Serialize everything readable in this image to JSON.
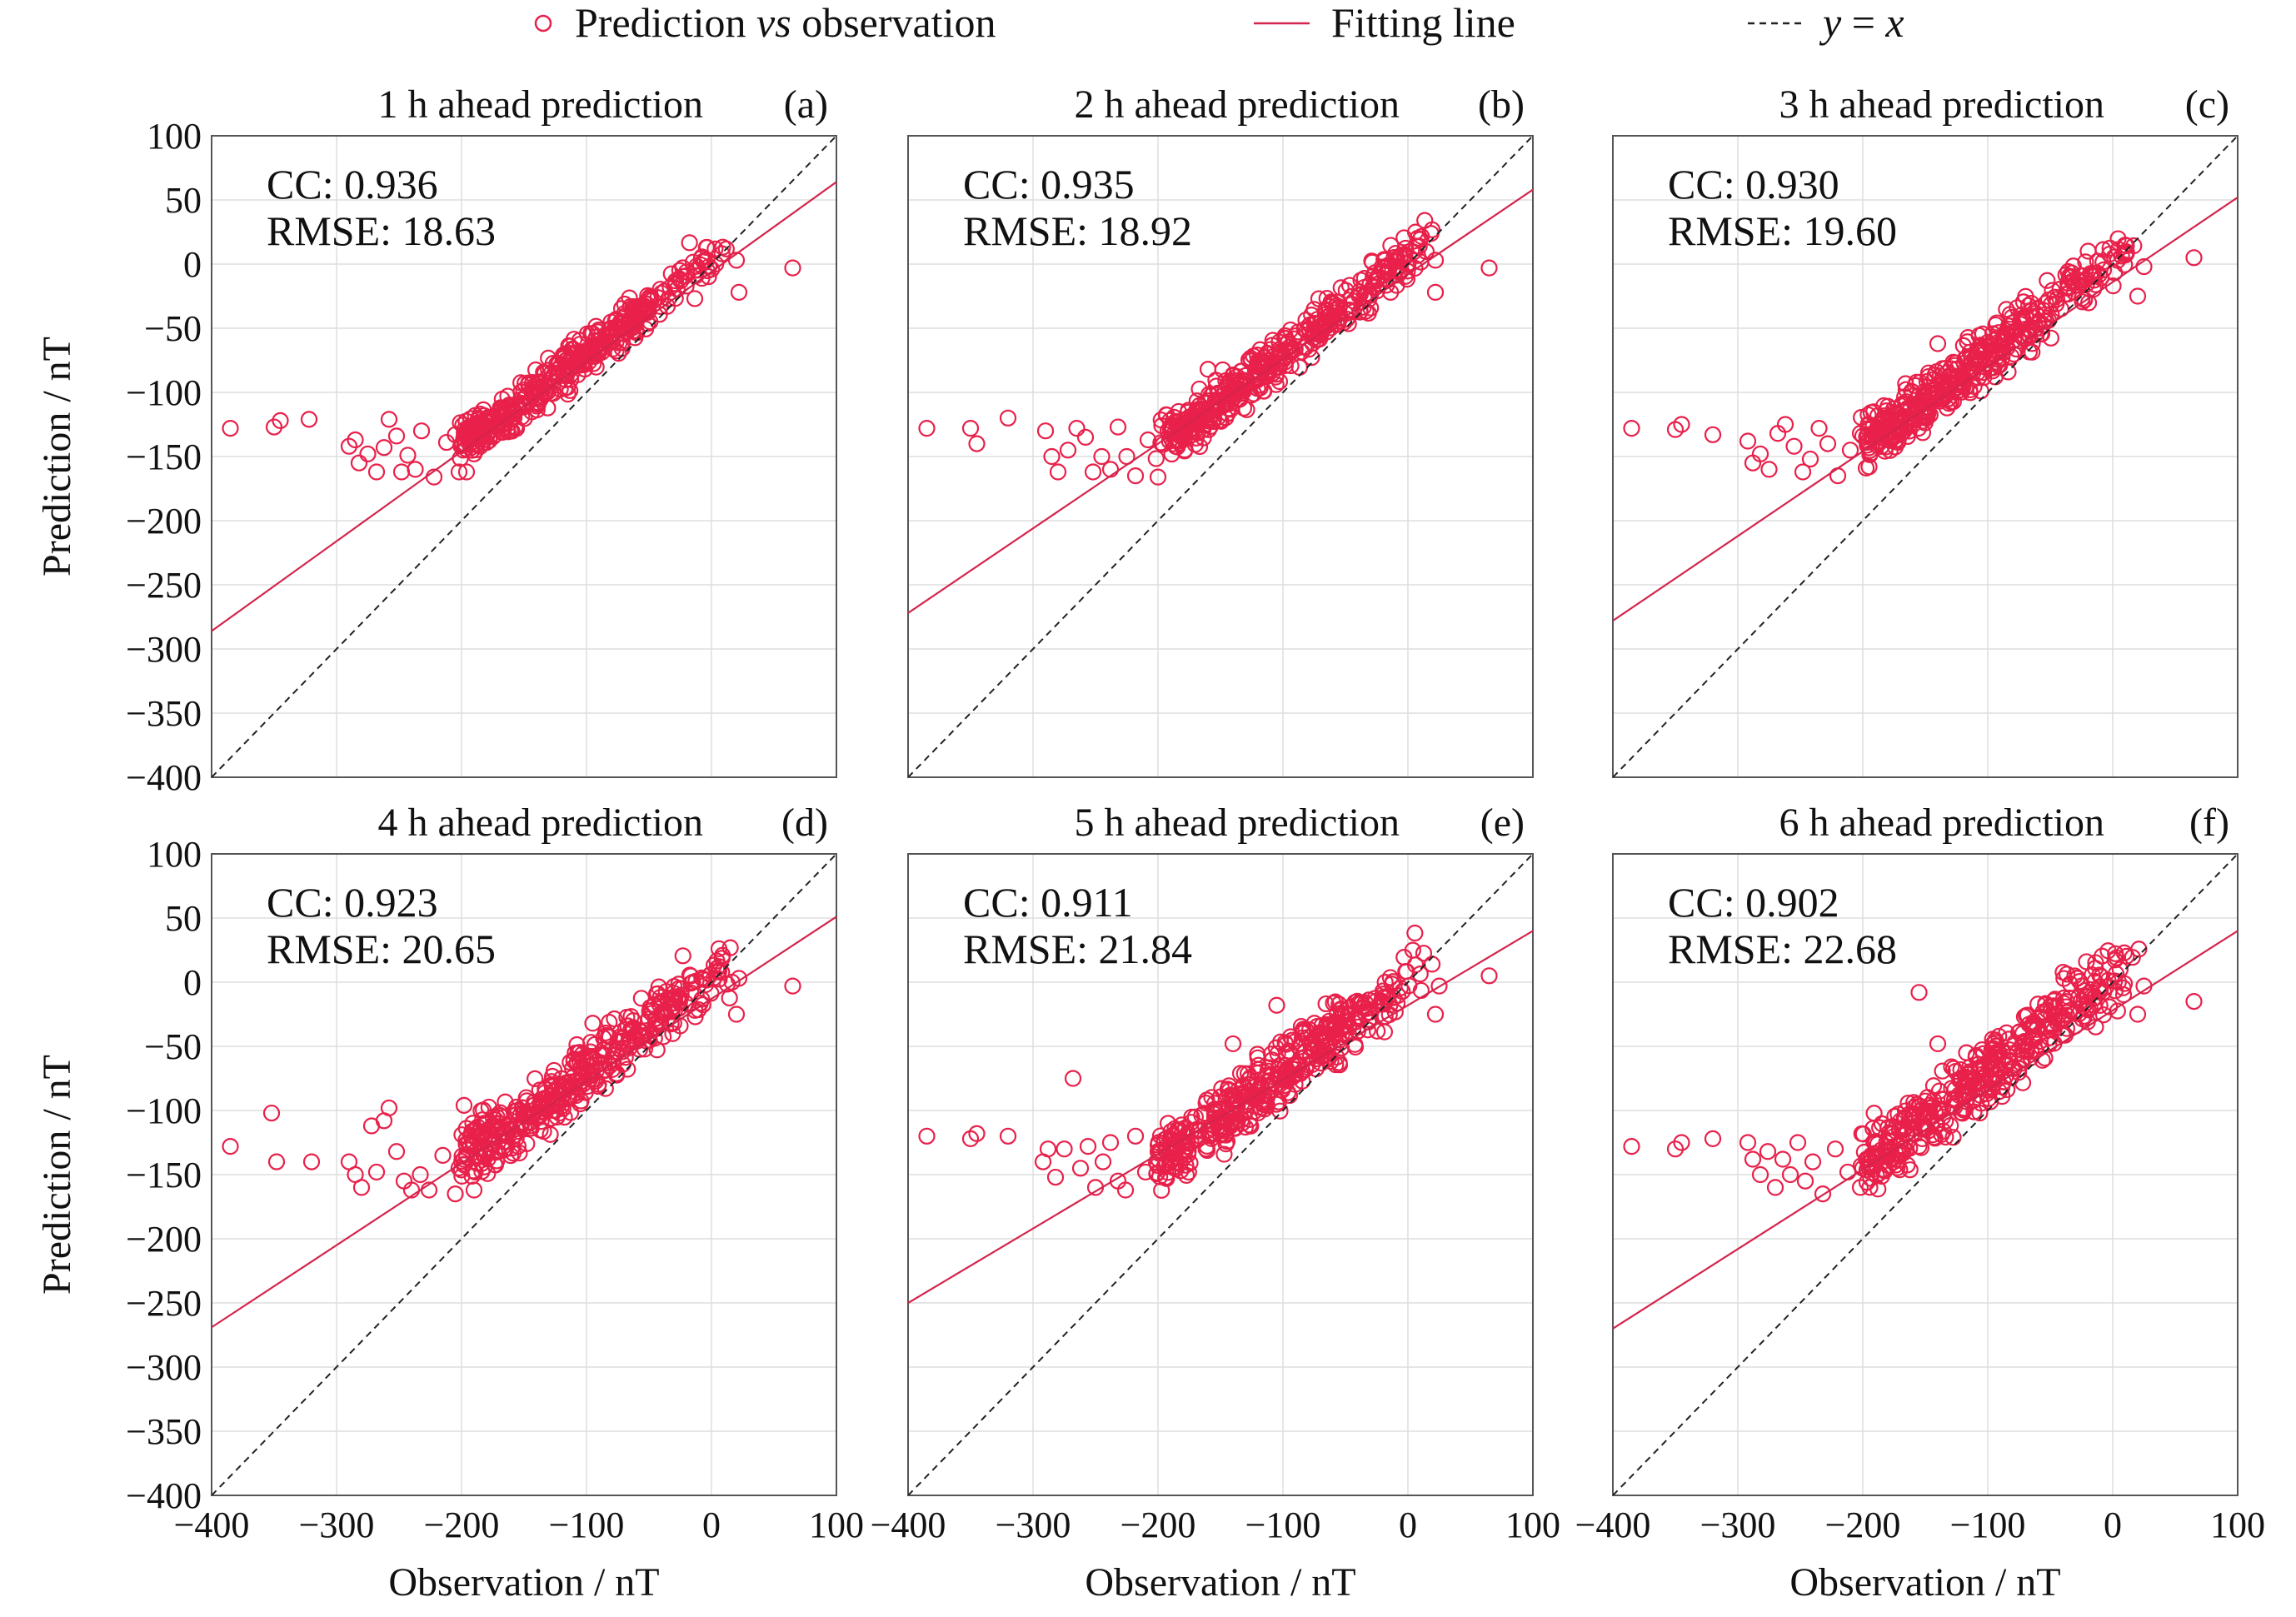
{
  "legend": {
    "scatter_label": "Prediction",
    "scatter_vs": "vs",
    "scatter_suffix": "observation",
    "fit_label": "Fitting line",
    "identity_label_y": "y",
    "identity_label_eq": " = ",
    "identity_label_x": "x",
    "position": "top"
  },
  "colors": {
    "marker": "#e8204a",
    "fit_line": "#d4244c",
    "identity_line": "#222222",
    "grid": "#dddddd",
    "axis": "#555555"
  },
  "chart_data": [
    {
      "type": "scatter",
      "panel": "(a)",
      "title": "1 h ahead prediction",
      "cc_label": "CC: ",
      "cc": "0.936",
      "rmse_label": "RMSE: ",
      "rmse": "18.63",
      "xlabel": "",
      "ylabel": "Prediction / nT",
      "xlim": [
        -400,
        100
      ],
      "ylim": [
        -400,
        100
      ],
      "xticks": [
        "−400",
        "−300",
        "−200",
        "−100",
        "0",
        "100"
      ],
      "yticks": [
        "100",
        "50",
        "0",
        "−50",
        "−100",
        "−150",
        "−200",
        "−250",
        "−300",
        "−350",
        "−400"
      ],
      "fit_line": {
        "slope": 0.7,
        "intercept": -6
      },
      "outliers": [
        [
          -385,
          -128
        ],
        [
          -350,
          -127
        ],
        [
          -345,
          -122
        ],
        [
          -322,
          -121
        ],
        [
          -290,
          -142
        ],
        [
          -285,
          -137
        ],
        [
          -282,
          -155
        ],
        [
          -275,
          -148
        ],
        [
          -268,
          -162
        ],
        [
          -262,
          -143
        ],
        [
          -258,
          -121
        ],
        [
          -252,
          -134
        ],
        [
          -248,
          -162
        ],
        [
          -243,
          -149
        ],
        [
          -237,
          -160
        ],
        [
          -232,
          -130
        ],
        [
          -222,
          -166
        ],
        [
          -212,
          -139
        ],
        [
          -205,
          -133
        ],
        [
          -202,
          -162
        ],
        [
          -196,
          -162
        ],
        [
          -190,
          -130
        ],
        [
          -185,
          -142
        ],
        [
          65,
          -3
        ],
        [
          22,
          -22
        ],
        [
          20,
          3
        ]
      ],
      "cluster": {
        "x0": -200,
        "x1": 20,
        "spread": 10,
        "seed": 11
      }
    },
    {
      "type": "scatter",
      "panel": "(b)",
      "title": "2 h ahead prediction",
      "cc_label": "CC: ",
      "cc": "0.935",
      "rmse_label": "RMSE: ",
      "rmse": "18.92",
      "xlabel": "",
      "ylabel": "",
      "xlim": [
        -400,
        100
      ],
      "ylim": [
        -400,
        100
      ],
      "xticks": [
        "−400",
        "−300",
        "−200",
        "−100",
        "0",
        "100"
      ],
      "yticks": [],
      "fit_line": {
        "slope": 0.66,
        "intercept": -8
      },
      "outliers": [
        [
          -385,
          -128
        ],
        [
          -350,
          -128
        ],
        [
          -345,
          -140
        ],
        [
          -320,
          -120
        ],
        [
          -290,
          -130
        ],
        [
          -285,
          -150
        ],
        [
          -280,
          -162
        ],
        [
          -272,
          -145
        ],
        [
          -265,
          -128
        ],
        [
          -258,
          -135
        ],
        [
          -252,
          -162
        ],
        [
          -245,
          -150
        ],
        [
          -238,
          -160
        ],
        [
          -232,
          -127
        ],
        [
          -225,
          -150
        ],
        [
          -218,
          -165
        ],
        [
          -208,
          -137
        ],
        [
          -200,
          -166
        ],
        [
          -192,
          -130
        ],
        [
          -186,
          -142
        ],
        [
          -160,
          -82
        ],
        [
          65,
          -3
        ],
        [
          22,
          -22
        ],
        [
          22,
          3
        ]
      ],
      "cluster": {
        "x0": -200,
        "x1": 20,
        "spread": 11,
        "seed": 23
      }
    },
    {
      "type": "scatter",
      "panel": "(c)",
      "title": "3 h ahead prediction",
      "cc_label": "CC: ",
      "cc": "0.930",
      "rmse_label": "RMSE: ",
      "rmse": "19.60",
      "xlabel": "",
      "ylabel": "",
      "xlim": [
        -400,
        100
      ],
      "ylim": [
        -400,
        100
      ],
      "xticks": [
        "−400",
        "−300",
        "−200",
        "−100",
        "0",
        "100"
      ],
      "yticks": [],
      "fit_line": {
        "slope": 0.66,
        "intercept": -14
      },
      "outliers": [
        [
          -385,
          -128
        ],
        [
          -350,
          -129
        ],
        [
          -345,
          -125
        ],
        [
          -320,
          -133
        ],
        [
          -292,
          -138
        ],
        [
          -288,
          -155
        ],
        [
          -282,
          -148
        ],
        [
          -275,
          -160
        ],
        [
          -268,
          -132
        ],
        [
          -262,
          -125
        ],
        [
          -255,
          -142
        ],
        [
          -248,
          -162
        ],
        [
          -242,
          -152
        ],
        [
          -235,
          -128
        ],
        [
          -228,
          -140
        ],
        [
          -220,
          -165
        ],
        [
          -210,
          -145
        ],
        [
          -202,
          -132
        ],
        [
          -195,
          -158
        ],
        [
          -188,
          -138
        ],
        [
          -140,
          -62
        ],
        [
          65,
          5
        ],
        [
          20,
          -25
        ],
        [
          25,
          -2
        ]
      ],
      "cluster": {
        "x0": -200,
        "x1": 20,
        "spread": 13,
        "seed": 37
      }
    },
    {
      "type": "scatter",
      "panel": "(d)",
      "title": "4 h ahead prediction",
      "cc_label": "CC: ",
      "cc": "0.923",
      "rmse_label": "RMSE: ",
      "rmse": "20.65",
      "xlabel": "",
      "ylabel": "Prediction / nT",
      "xlim": [
        -400,
        100
      ],
      "ylim": [
        -400,
        100
      ],
      "xticks": [
        "−400",
        "−300",
        "−200",
        "−100",
        "0",
        "100"
      ],
      "yticks": [
        "100",
        "50",
        "0",
        "−50",
        "−100",
        "−150",
        "−200",
        "−250",
        "−300",
        "−350",
        "−400"
      ],
      "fit_line": {
        "slope": 0.64,
        "intercept": -13
      },
      "outliers": [
        [
          -385,
          -128
        ],
        [
          -352,
          -102
        ],
        [
          -348,
          -140
        ],
        [
          -320,
          -140
        ],
        [
          -290,
          -140
        ],
        [
          -285,
          -150
        ],
        [
          -280,
          -160
        ],
        [
          -272,
          -112
        ],
        [
          -268,
          -148
        ],
        [
          -262,
          -108
        ],
        [
          -258,
          -98
        ],
        [
          -252,
          -132
        ],
        [
          -246,
          -155
        ],
        [
          -240,
          -162
        ],
        [
          -233,
          -150
        ],
        [
          -226,
          -162
        ],
        [
          -215,
          -135
        ],
        [
          -205,
          -165
        ],
        [
          -198,
          -96
        ],
        [
          -190,
          -162
        ],
        [
          -182,
          -110
        ],
        [
          -165,
          -130
        ],
        [
          -95,
          -32
        ],
        [
          65,
          -3
        ],
        [
          20,
          -25
        ],
        [
          22,
          3
        ]
      ],
      "cluster": {
        "x0": -200,
        "x1": 20,
        "spread": 14,
        "seed": 41
      }
    },
    {
      "type": "scatter",
      "panel": "(e)",
      "title": "5 h ahead prediction",
      "cc_label": "CC: ",
      "cc": "0.911",
      "rmse_label": "RMSE: ",
      "rmse": "21.84",
      "xlabel": "Observation / nT",
      "ylabel": "",
      "xlim": [
        -400,
        100
      ],
      "ylim": [
        -400,
        100
      ],
      "xticks": [
        "−400",
        "−300",
        "−200",
        "−100",
        "0",
        "100"
      ],
      "yticks": [],
      "fit_line": {
        "slope": 0.58,
        "intercept": -18
      },
      "outliers": [
        [
          -385,
          -120
        ],
        [
          -350,
          -122
        ],
        [
          -345,
          -118
        ],
        [
          -320,
          -120
        ],
        [
          -292,
          -140
        ],
        [
          -288,
          -130
        ],
        [
          -282,
          -152
        ],
        [
          -275,
          -130
        ],
        [
          -268,
          -75
        ],
        [
          -262,
          -145
        ],
        [
          -256,
          -128
        ],
        [
          -250,
          -160
        ],
        [
          -244,
          -140
        ],
        [
          -238,
          -125
        ],
        [
          -232,
          -155
        ],
        [
          -226,
          -162
        ],
        [
          -218,
          -120
        ],
        [
          -210,
          -148
        ],
        [
          -200,
          -132
        ],
        [
          -192,
          -110
        ],
        [
          -140,
          -48
        ],
        [
          -105,
          -18
        ],
        [
          65,
          5
        ],
        [
          22,
          -25
        ],
        [
          25,
          -3
        ]
      ],
      "cluster": {
        "x0": -200,
        "x1": 20,
        "spread": 15,
        "seed": 53
      }
    },
    {
      "type": "scatter",
      "panel": "(f)",
      "title": "6 h ahead prediction",
      "cc_label": "CC: ",
      "cc": "0.902",
      "rmse_label": "RMSE: ",
      "rmse": "22.68",
      "xlabel": "Observation / nT",
      "ylabel": "",
      "xlim": [
        -400,
        100
      ],
      "ylim": [
        -400,
        100
      ],
      "xticks": [
        "−400",
        "−300",
        "−200",
        "−100",
        "0",
        "100"
      ],
      "yticks": [],
      "fit_line": {
        "slope": 0.62,
        "intercept": -22
      },
      "outliers": [
        [
          -385,
          -128
        ],
        [
          -350,
          -130
        ],
        [
          -345,
          -125
        ],
        [
          -320,
          -122
        ],
        [
          -292,
          -125
        ],
        [
          -288,
          -138
        ],
        [
          -282,
          -150
        ],
        [
          -276,
          -132
        ],
        [
          -270,
          -160
        ],
        [
          -264,
          -138
        ],
        [
          -258,
          -150
        ],
        [
          -252,
          -125
        ],
        [
          -246,
          -155
        ],
        [
          -240,
          -140
        ],
        [
          -232,
          -165
        ],
        [
          -222,
          -130
        ],
        [
          -212,
          -148
        ],
        [
          -202,
          -160
        ],
        [
          -194,
          -138
        ],
        [
          -185,
          -135
        ],
        [
          -155,
          -8
        ],
        [
          -140,
          -48
        ],
        [
          65,
          -15
        ],
        [
          20,
          -25
        ],
        [
          25,
          -3
        ]
      ],
      "cluster": {
        "x0": -200,
        "x1": 20,
        "spread": 16,
        "seed": 67
      }
    }
  ]
}
